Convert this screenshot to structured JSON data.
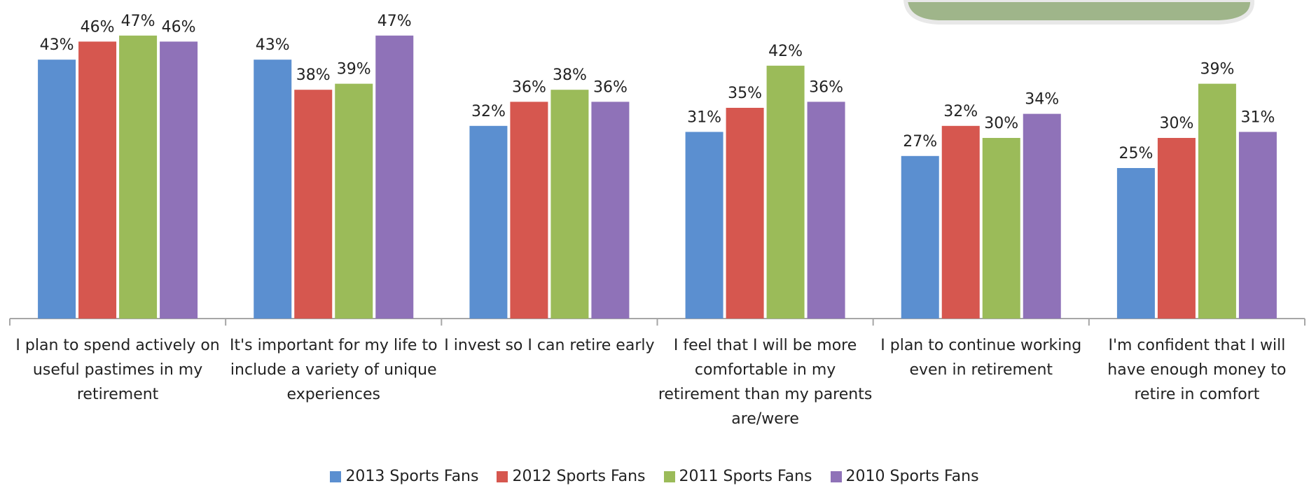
{
  "chart_data": {
    "type": "bar",
    "categories": [
      "I plan to spend actively on useful pastimes in my retirement",
      "It's important for my life to include a variety of unique experiences",
      "I invest so I can retire early",
      "I feel that I will be more comfortable in my retirement than my parents are/were",
      "I plan to continue working even in retirement",
      "I'm confident that I will have enough money to retire in comfort"
    ],
    "series": [
      {
        "name": "2013 Sports Fans",
        "color": "#5b8fd0",
        "values": [
          43,
          43,
          32,
          31,
          27,
          25
        ],
        "value_labels": [
          "43%",
          "43%",
          "32%",
          "31%",
          "27%",
          "25%"
        ]
      },
      {
        "name": "2012 Sports Fans",
        "color": "#d6574f",
        "values": [
          46,
          38,
          36,
          35,
          32,
          30
        ],
        "value_labels": [
          "46%",
          "38%",
          "36%",
          "35%",
          "32%",
          "30%"
        ]
      },
      {
        "name": "2011 Sports Fans",
        "color": "#9bbb59",
        "values": [
          47,
          39,
          38,
          42,
          30,
          39
        ],
        "value_labels": [
          "47%",
          "39%",
          "38%",
          "42%",
          "30%",
          "39%"
        ]
      },
      {
        "name": "2010 Sports Fans",
        "color": "#8f72b8",
        "values": [
          46,
          47,
          36,
          36,
          34,
          31
        ],
        "value_labels": [
          "46%",
          "47%",
          "36%",
          "36%",
          "34%",
          "31%"
        ]
      }
    ]
  }
}
